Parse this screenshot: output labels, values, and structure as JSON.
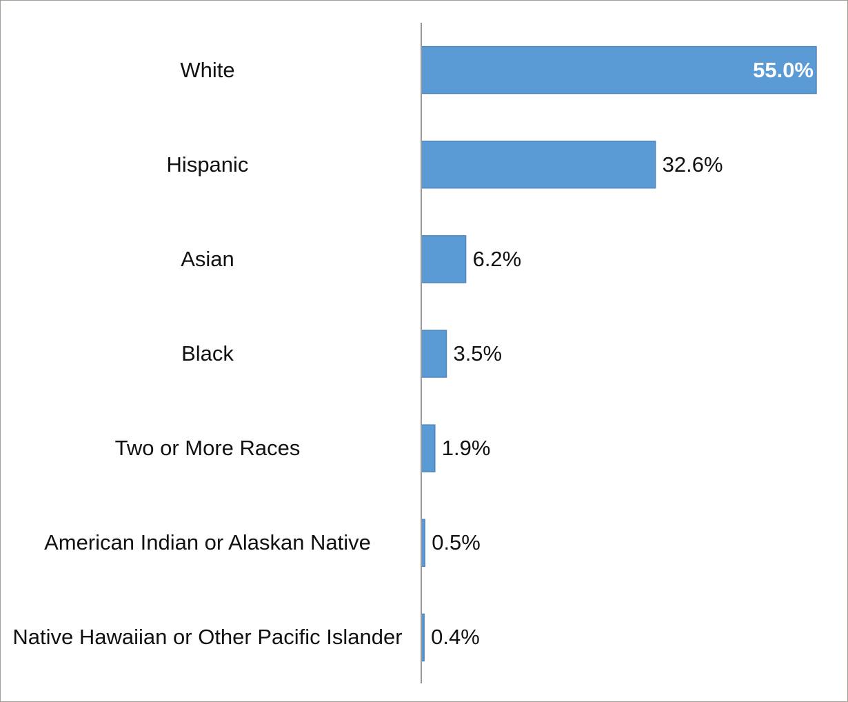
{
  "chart_data": {
    "type": "bar",
    "orientation": "horizontal",
    "categories": [
      "White",
      "Hispanic",
      "Asian",
      "Black",
      "Two or More Races",
      "American Indian or Alaskan Native",
      "Native Hawaiian or Other Pacific Islander"
    ],
    "values": [
      55.0,
      32.6,
      6.2,
      3.5,
      1.9,
      0.5,
      0.4
    ],
    "value_labels": [
      "55.0%",
      "32.6%",
      "6.2%",
      "3.5%",
      "1.9%",
      "0.5%",
      "0.4%"
    ],
    "color": "#5b9bd5"
  }
}
